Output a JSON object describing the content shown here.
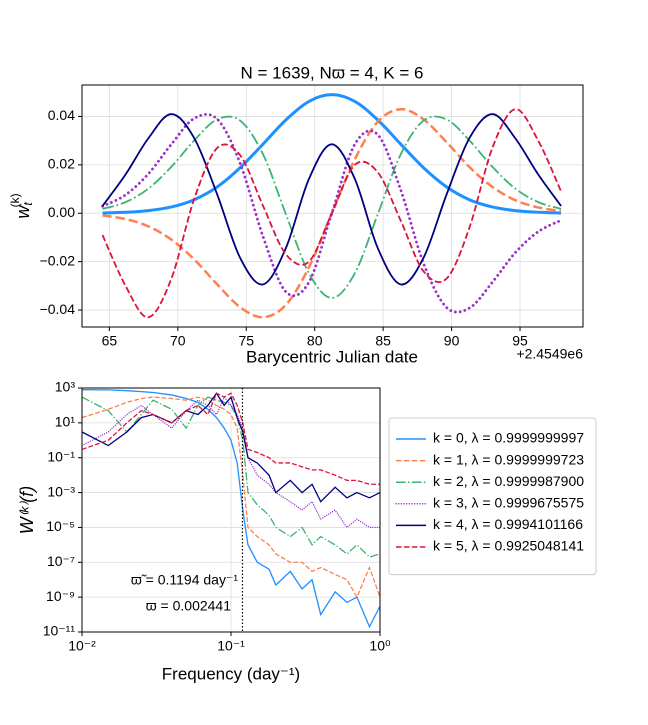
{
  "chart_data": [
    {
      "type": "line",
      "title": "N = 1639, Nϖ = 4, K = 6",
      "xlabel": "Barycentric Julian date",
      "x_offset_label": "+2.4549e6",
      "ylabel": {
        "base": "w",
        "sub": "t",
        "sup": "(k)"
      },
      "x": [
        64.5,
        66.18,
        67.85,
        69.53,
        71.2,
        72.88,
        74.55,
        76.23,
        77.9,
        79.58,
        81.25,
        82.93,
        84.6,
        86.28,
        87.95,
        89.63,
        91.3,
        92.98,
        94.65,
        96.33,
        98.0
      ],
      "xlim": [
        63,
        99.6
      ],
      "xticks": [
        65,
        70,
        75,
        80,
        85,
        90,
        95
      ],
      "ylim": [
        -0.047,
        0.053
      ],
      "yticks": [
        {
          "value": -0.04,
          "label": "−0.04"
        },
        {
          "value": -0.02,
          "label": "−0.02"
        },
        {
          "value": 0,
          "label": "0.00"
        },
        {
          "value": 0.02,
          "label": "0.02"
        },
        {
          "value": 0.04,
          "label": "0.04"
        }
      ],
      "grid": true,
      "series": [
        {
          "color": "#1e90ff",
          "linestyle": "solid",
          "values": [
            0.0001,
            0.0004,
            0.0011,
            0.0026,
            0.0056,
            0.0109,
            0.0188,
            0.0286,
            0.0386,
            0.0462,
            0.049,
            0.0462,
            0.0386,
            0.0286,
            0.0188,
            0.0109,
            0.0056,
            0.0026,
            0.0011,
            0.0004,
            0.0001
          ]
        },
        {
          "color": "#ff7f50",
          "linestyle": "dashed",
          "values": [
            -0.0009,
            -0.0024,
            -0.0054,
            -0.0109,
            -0.0191,
            -0.0294,
            -0.0388,
            -0.043,
            -0.0378,
            -0.0223,
            0,
            0.0223,
            0.0378,
            0.043,
            0.0388,
            0.0294,
            0.0191,
            0.0109,
            0.0054,
            0.0024,
            0.0009
          ]
        },
        {
          "color": "#3cb371",
          "linestyle": "dashdot",
          "values": [
            0.0018,
            0.0046,
            0.0102,
            0.0192,
            0.0301,
            0.0388,
            0.0383,
            0.0243,
            -0.0005,
            -0.0248,
            -0.035,
            -0.0248,
            -0.0005,
            0.0243,
            0.0383,
            0.0388,
            0.0301,
            0.0192,
            0.0102,
            0.0046,
            0.0018
          ]
        },
        {
          "color": "#9932cc",
          "linestyle": "dotted",
          "values": [
            0.0029,
            0.0076,
            0.0163,
            0.0285,
            0.0392,
            0.0389,
            0.0207,
            -0.0097,
            -0.0325,
            -0.0285,
            0,
            0.0285,
            0.0325,
            0.0097,
            -0.0207,
            -0.0389,
            -0.0392,
            -0.0285,
            -0.0163,
            -0.0076,
            -0.0029
          ]
        },
        {
          "color": "#000080",
          "linestyle": "solid",
          "values": [
            0.003,
            0.016,
            0.031,
            0.041,
            0.031,
            0.0077,
            -0.0184,
            -0.0294,
            -0.0143,
            0.0142,
            0.0285,
            0.0142,
            -0.0143,
            -0.0294,
            -0.0184,
            0.0077,
            0.031,
            0.041,
            0.031,
            0.016,
            0.003
          ]
        },
        {
          "color": "#dc143c",
          "linestyle": "dashed",
          "values": [
            -0.009,
            -0.03,
            -0.043,
            -0.027,
            0.006,
            0.027,
            0.024,
            0.003,
            -0.017,
            -0.02,
            0,
            0.02,
            0.017,
            -0.003,
            -0.024,
            -0.027,
            -0.006,
            0.027,
            0.043,
            0.03,
            0.009
          ]
        }
      ]
    },
    {
      "type": "line",
      "log_x": true,
      "log_y": true,
      "xlabel": "Frequency (day⁻¹)",
      "ylabel": "W⁽ᵏ⁾(f)",
      "x": [
        0.01,
        0.015,
        0.02,
        0.025,
        0.03,
        0.04,
        0.05,
        0.06,
        0.07,
        0.08,
        0.09,
        0.1,
        0.11,
        0.12,
        0.13,
        0.15,
        0.18,
        0.2,
        0.25,
        0.3,
        0.35,
        0.4,
        0.5,
        0.6,
        0.7,
        0.85,
        1.0
      ],
      "xlim": [
        0.01,
        1
      ],
      "xticks": [
        {
          "value": 0.01,
          "label": "10⁻²"
        },
        {
          "value": 0.1,
          "label": "10⁻¹"
        },
        {
          "value": 1,
          "label": "10⁰"
        }
      ],
      "ylim": [
        1e-11,
        1000
      ],
      "yticks": [
        {
          "value": 1000,
          "label": "10³"
        },
        {
          "value": 10,
          "label": "10¹"
        },
        {
          "value": 0.1,
          "label": "10⁻¹"
        },
        {
          "value": 0.001,
          "label": "10⁻³"
        },
        {
          "value": 1e-05,
          "label": "10⁻⁵"
        },
        {
          "value": 1e-07,
          "label": "10⁻⁷"
        },
        {
          "value": 1e-09,
          "label": "10⁻⁹"
        },
        {
          "value": 1e-11,
          "label": "10⁻¹¹"
        }
      ],
      "grid": true,
      "vline": 0.1194,
      "annotations": [
        "ϖ̃ = 0.1194 day⁻¹",
        "ϖ = 0.002441"
      ],
      "legend": "outside right",
      "series": [
        {
          "name": "k = 0, λ = 0.9999999997",
          "color": "#1e90ff",
          "linestyle": "solid",
          "values": [
            800,
            780,
            700,
            620,
            550,
            400,
            250,
            150,
            60,
            20,
            5,
            1,
            0.05,
            0.0001,
            1e-06,
            1e-07,
            4e-08,
            5e-09,
            3e-08,
            3e-09,
            1e-08,
            1e-10,
            2e-09,
            5e-10,
            1e-09,
            2e-11,
            3e-10
          ]
        },
        {
          "name": "k = 1, λ = 0.9999999723",
          "color": "#ff7f50",
          "linestyle": "dashed",
          "values": [
            20,
            60,
            150,
            250,
            300,
            250,
            200,
            300,
            200,
            100,
            60,
            30,
            5,
            0.01,
            1e-05,
            3e-06,
            1e-06,
            3e-07,
            1e-07,
            1e-07,
            3e-08,
            5e-08,
            2e-08,
            1e-08,
            1e-09,
            5e-08,
            1e-09
          ]
        },
        {
          "name": "k = 2, λ = 0.9999987900",
          "color": "#3cb371",
          "linestyle": "dashdot",
          "values": [
            300,
            50,
            3,
            30,
            200,
            60,
            5,
            100,
            300,
            200,
            150,
            100,
            20,
            1,
            0.001,
            0.0002,
            5e-05,
            1e-05,
            3e-06,
            1e-05,
            1e-06,
            3e-06,
            1e-06,
            3e-07,
            1e-06,
            2e-07,
            3e-07
          ]
        },
        {
          "name": "k = 3, λ = 0.9999675575",
          "color": "#9932cc",
          "linestyle": "dotted",
          "values": [
            0.5,
            3,
            30,
            100,
            30,
            5,
            50,
            200,
            100,
            30,
            300,
            100,
            30,
            5,
            0.1,
            0.01,
            0.003,
            0.001,
            0.0003,
            0.0001,
            0.0003,
            3e-05,
            0.0001,
            1e-05,
            3e-05,
            1e-05,
            1e-05
          ]
        },
        {
          "name": "k = 4, λ = 0.9994101166",
          "color": "#000080",
          "linestyle": "solid",
          "values": [
            3,
            0.5,
            3,
            20,
            30,
            10,
            50,
            30,
            100,
            500,
            100,
            300,
            20,
            3,
            0.1,
            0.05,
            0.01,
            0.001,
            0.005,
            0.001,
            0.003,
            0.0003,
            0.002,
            0.0005,
            0.001,
            0.0005,
            0.001
          ]
        },
        {
          "name": "k = 5, λ = 0.9925048141",
          "color": "#dc143c",
          "linestyle": "dashed",
          "values": [
            0.3,
            1,
            10,
            50,
            30,
            10,
            50,
            100,
            30,
            500,
            300,
            500,
            100,
            10,
            0.3,
            0.2,
            0.1,
            0.05,
            0.05,
            0.03,
            0.02,
            0.02,
            0.01,
            0.005,
            0.005,
            0.003,
            0.003
          ]
        }
      ]
    }
  ]
}
